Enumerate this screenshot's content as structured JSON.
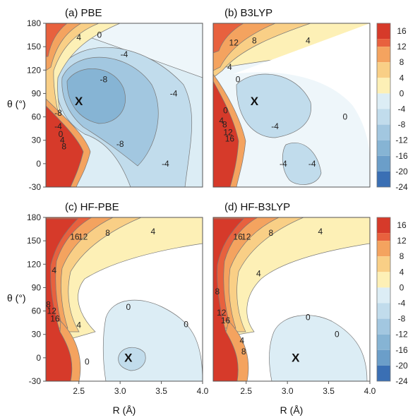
{
  "chart_data": {
    "type": "heatmap",
    "shared": {
      "xlabel": "R (Å)",
      "ylabel": "θ (°)",
      "xticks": [
        "2.5",
        "3.0",
        "3.5",
        "4.0"
      ],
      "xlim": [
        2.1,
        4.0
      ],
      "ylim": [
        -30,
        180
      ],
      "yticks": [
        "180",
        "150",
        "120",
        "90",
        "60",
        "30",
        "0",
        "-30"
      ],
      "colorbar_ticks": [
        "16",
        "12",
        "8",
        "4",
        "0",
        "-4",
        "-8",
        "-12",
        "-16",
        "-20",
        "-24"
      ],
      "colorbar_range": [
        -24,
        18
      ],
      "colors": {
        "deep_red": "#d63a2a",
        "red": "#e8613e",
        "orange": "#f4a35f",
        "light_orange": "#f9cf86",
        "yellow": "#fdf0b6",
        "zero": "#ffffff",
        "pale_blue": "#dcedf5",
        "light_blue": "#c1dcec",
        "blue": "#a2c7e0",
        "mid_blue": "#86b4d4",
        "deep_blue": "#3a6fb4"
      }
    },
    "panels": [
      {
        "title": "(a) PBE",
        "minimum_marker": "X",
        "minimum": {
          "R": 2.5,
          "theta": 80
        },
        "contour_labels": [
          {
            "text": "4",
            "R": 2.5,
            "theta": 162
          },
          {
            "text": "0",
            "R": 2.75,
            "theta": 165
          },
          {
            "text": "-4",
            "R": 3.05,
            "theta": 140
          },
          {
            "text": "-8",
            "R": 2.8,
            "theta": 108
          },
          {
            "text": "-4",
            "R": 3.65,
            "theta": 90
          },
          {
            "text": "-8",
            "R": 3.0,
            "theta": 25
          },
          {
            "text": "-4",
            "R": 3.55,
            "theta": 0
          },
          {
            "text": "-8",
            "R": 2.25,
            "theta": 65
          },
          {
            "text": "-4",
            "R": 2.25,
            "theta": 48
          },
          {
            "text": "0",
            "R": 2.28,
            "theta": 38
          },
          {
            "text": "4",
            "R": 2.3,
            "theta": 30
          },
          {
            "text": "8",
            "R": 2.32,
            "theta": 22
          }
        ]
      },
      {
        "title": "(b) B3LYP",
        "minimum_marker": "X",
        "minimum": {
          "R": 2.6,
          "theta": 80
        },
        "contour_labels": [
          {
            "text": "12",
            "R": 2.35,
            "theta": 155
          },
          {
            "text": "8",
            "R": 2.6,
            "theta": 158
          },
          {
            "text": "4",
            "R": 3.25,
            "theta": 158
          },
          {
            "text": "4",
            "R": 2.3,
            "theta": 124
          },
          {
            "text": "0",
            "R": 2.4,
            "theta": 108
          },
          {
            "text": "-4",
            "R": 2.85,
            "theta": 48
          },
          {
            "text": "0",
            "R": 3.7,
            "theta": 60
          },
          {
            "text": "-4",
            "R": 2.95,
            "theta": 0
          },
          {
            "text": "-4",
            "R": 3.3,
            "theta": 0
          },
          {
            "text": "0",
            "R": 2.25,
            "theta": 68
          },
          {
            "text": "4",
            "R": 2.2,
            "theta": 55
          },
          {
            "text": "8",
            "R": 2.24,
            "theta": 50
          },
          {
            "text": "12",
            "R": 2.28,
            "theta": 40
          },
          {
            "text": "16",
            "R": 2.3,
            "theta": 32
          }
        ]
      },
      {
        "title": "(c) HF-PBE",
        "minimum_marker": "X",
        "minimum": {
          "R": 3.1,
          "theta": 0
        },
        "contour_labels": [
          {
            "text": "16",
            "R": 2.45,
            "theta": 155
          },
          {
            "text": "12",
            "R": 2.55,
            "theta": 155
          },
          {
            "text": "8",
            "R": 2.85,
            "theta": 160
          },
          {
            "text": "4",
            "R": 3.4,
            "theta": 162
          },
          {
            "text": "4",
            "R": 2.2,
            "theta": 112
          },
          {
            "text": "0",
            "R": 3.1,
            "theta": 65
          },
          {
            "text": "0",
            "R": 3.8,
            "theta": 43
          },
          {
            "text": "8",
            "R": 2.13,
            "theta": 68
          },
          {
            "text": "12",
            "R": 2.17,
            "theta": 60
          },
          {
            "text": "16",
            "R": 2.21,
            "theta": 50
          },
          {
            "text": "4",
            "R": 2.5,
            "theta": 42
          },
          {
            "text": "0",
            "R": 2.6,
            "theta": -5
          }
        ]
      },
      {
        "title": "(d) HF-B3LYP",
        "minimum_marker": "X",
        "minimum": {
          "R": 3.1,
          "theta": 0
        },
        "contour_labels": [
          {
            "text": "16",
            "R": 2.4,
            "theta": 155
          },
          {
            "text": "12",
            "R": 2.5,
            "theta": 155
          },
          {
            "text": "8",
            "R": 2.8,
            "theta": 160
          },
          {
            "text": "4",
            "R": 3.4,
            "theta": 162
          },
          {
            "text": "4",
            "R": 2.65,
            "theta": 108
          },
          {
            "text": "8",
            "R": 2.15,
            "theta": 85
          },
          {
            "text": "12",
            "R": 2.2,
            "theta": 58
          },
          {
            "text": "16",
            "R": 2.25,
            "theta": 48
          },
          {
            "text": "0",
            "R": 3.25,
            "theta": 52
          },
          {
            "text": "4",
            "R": 2.45,
            "theta": 22
          },
          {
            "text": "8",
            "R": 2.47,
            "theta": 8
          },
          {
            "text": "0",
            "R": 3.6,
            "theta": 30
          }
        ]
      }
    ]
  }
}
